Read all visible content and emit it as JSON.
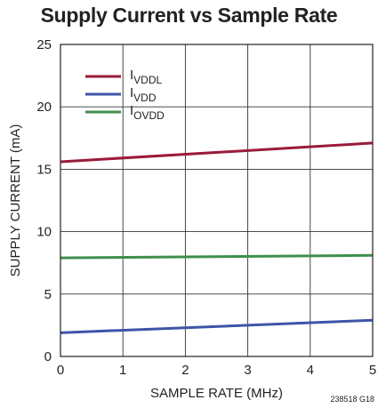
{
  "chart_data": {
    "type": "line",
    "title": "Supply Current vs Sample Rate",
    "xlabel": "SAMPLE RATE (MHz)",
    "ylabel": "SUPPLY CURRENT (mA)",
    "xlim": [
      0,
      5
    ],
    "ylim": [
      0,
      25
    ],
    "x_ticks": [
      0,
      1,
      2,
      3,
      4,
      5
    ],
    "y_ticks": [
      0,
      5,
      10,
      15,
      20,
      25
    ],
    "grid": true,
    "legend_position": "top-left",
    "series": [
      {
        "name": "I",
        "subscript": "VDDL",
        "color": "#9b1b3a",
        "x": [
          0,
          5
        ],
        "y": [
          15.6,
          17.1
        ]
      },
      {
        "name": "I",
        "subscript": "VDD",
        "color": "#3d55a8",
        "x": [
          0,
          5
        ],
        "y": [
          1.9,
          2.9
        ]
      },
      {
        "name": "I",
        "subscript": "OVDD",
        "color": "#3f8f4c",
        "x": [
          0,
          5
        ],
        "y": [
          7.9,
          8.1
        ]
      }
    ],
    "annotations": [
      "238518 G18"
    ]
  }
}
